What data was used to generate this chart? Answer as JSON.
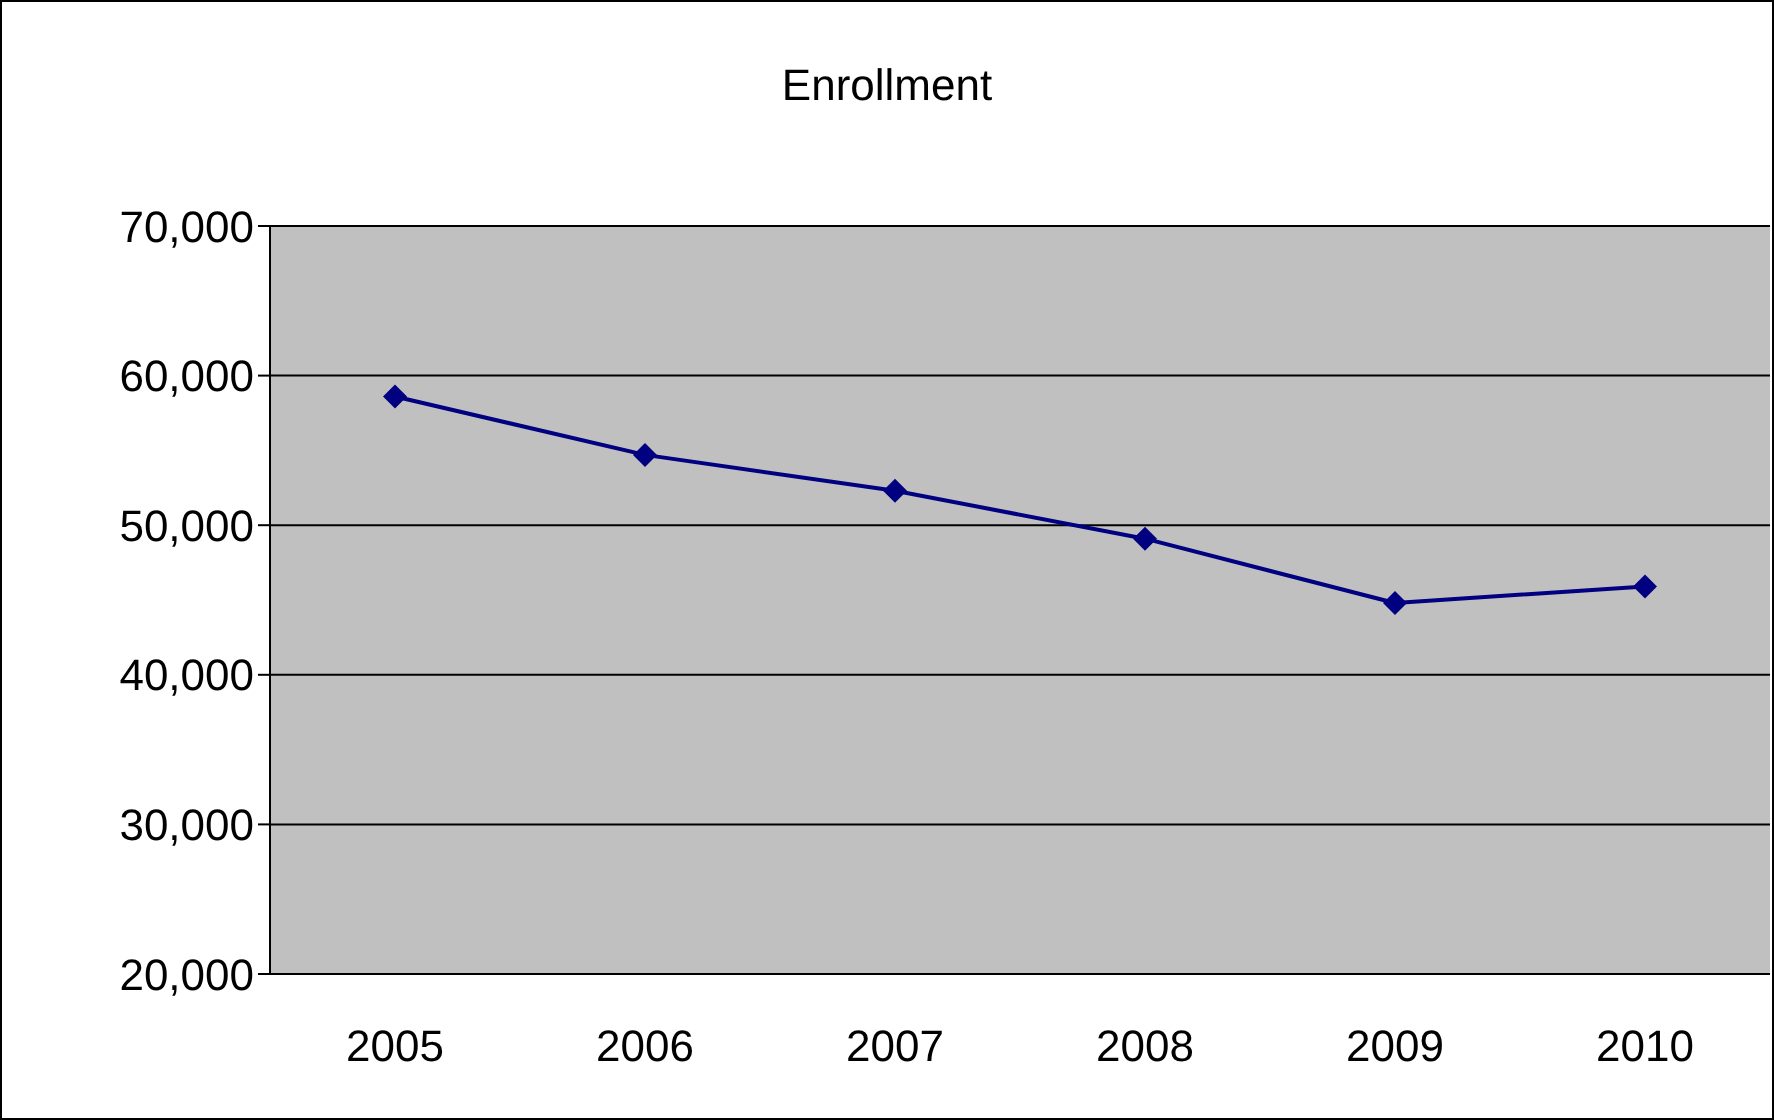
{
  "chart_data": {
    "type": "line",
    "title": "Enrollment",
    "categories": [
      "2005",
      "2006",
      "2007",
      "2008",
      "2009",
      "2010"
    ],
    "series": [
      {
        "color": "#000080",
        "values": [
          58600,
          54700,
          52300,
          49100,
          44800,
          45900
        ]
      }
    ],
    "ylim": [
      20000,
      70000
    ],
    "yticks": [
      {
        "value": 20000,
        "label": "20,000"
      },
      {
        "value": 30000,
        "label": "30,000"
      },
      {
        "value": 40000,
        "label": "40,000"
      },
      {
        "value": 50000,
        "label": "50,000"
      },
      {
        "value": 60000,
        "label": "60,000"
      },
      {
        "value": 70000,
        "label": "70,000"
      }
    ],
    "grid": "y",
    "marker": "diamond"
  }
}
